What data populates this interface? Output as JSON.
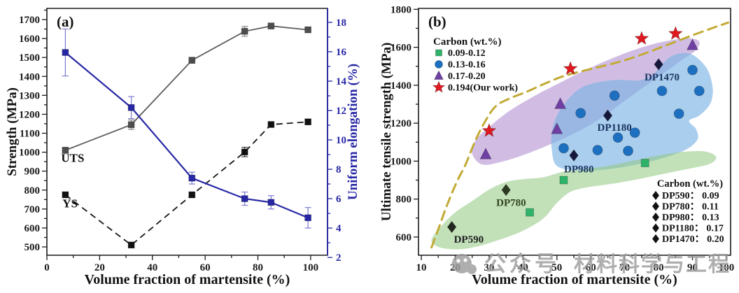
{
  "figure": {
    "description": "Dual-panel figure: mechanical properties of dual-phase steels vs volume fraction of martensite"
  },
  "watermark": {
    "icon": "wechat-icon",
    "texts": [
      "公众号",
      "材料科学与工程"
    ],
    "color": "#9d9d9d"
  },
  "chart_data": [
    {
      "id": "a",
      "type": "line",
      "panel_label": "(a)",
      "xlabel": "Volume fraction of martensite (%)",
      "ylabel": "Strength (MPa)",
      "ylabel_right": "Uniform elongation (%)",
      "axis_color_right": "#2727a6",
      "xlim": [
        0,
        106.4
      ],
      "x_ticks": [
        0,
        20,
        40,
        60,
        80,
        100
      ],
      "x_minor": [
        10,
        30,
        50,
        70,
        90
      ],
      "ylim": [
        456,
        1759
      ],
      "y_ticks": [
        500,
        600,
        700,
        800,
        900,
        1000,
        1100,
        1200,
        1300,
        1400,
        1500,
        1600,
        1700
      ],
      "y_minor": [
        550,
        650,
        750,
        850,
        950,
        1050,
        1150,
        1250,
        1350,
        1450,
        1550,
        1650,
        1750
      ],
      "ylim_right": [
        2.15,
        18.95
      ],
      "y_ticks_right": [
        2,
        4,
        6,
        8,
        10,
        12,
        14,
        16,
        18
      ],
      "y_minor_right": [
        3,
        5,
        7,
        9,
        11,
        13,
        15,
        17
      ],
      "grid": false,
      "series": [
        {
          "name": "UTS",
          "axis": "left",
          "marker": "square",
          "color": "#4d4d4d",
          "line_color": "#5e5e5e",
          "line_style": "solid",
          "err_color": "#8a8a8a",
          "points": [
            [
              7,
              1010
            ],
            [
              32,
              1145
            ],
            [
              55,
              1485
            ],
            [
              75,
              1638
            ],
            [
              85,
              1666
            ],
            [
              99,
              1646
            ]
          ],
          "errors": [
            15,
            25,
            15,
            26,
            14,
            10
          ]
        },
        {
          "name": "YS",
          "axis": "left",
          "marker": "square",
          "color": "#111111",
          "line_color": "#161616",
          "line_style": "dashed",
          "err_color": "#3d3d3d",
          "points": [
            [
              7,
              775
            ],
            [
              32,
              510
            ],
            [
              55,
              775
            ],
            [
              75,
              1001
            ],
            [
              85,
              1146
            ],
            [
              99,
              1160
            ]
          ],
          "errors": [
            10,
            8,
            12,
            25,
            10,
            10
          ]
        },
        {
          "name": "Uniform elongation",
          "axis": "right",
          "marker": "square",
          "color": "#2727a6",
          "line_color": "#2727a6",
          "line_style": "solid",
          "err_color": "#7a7ad0",
          "points": [
            [
              7,
              15.95
            ],
            [
              32,
              12.2
            ],
            [
              55,
              7.4
            ],
            [
              75,
              6.0
            ],
            [
              85,
              5.75
            ],
            [
              99,
              4.7
            ]
          ],
          "errors": [
            1.6,
            0.75,
            0.4,
            0.45,
            0.45,
            0.7
          ]
        }
      ],
      "annotations": [
        {
          "text": "UTS",
          "x": 9.8,
          "y": 948,
          "color": "#111111"
        },
        {
          "text": "YS",
          "x": 8.8,
          "y": 708,
          "color": "#111111"
        }
      ]
    },
    {
      "id": "b",
      "type": "scatter",
      "panel_label": "(b)",
      "xlabel": "Volume fraction of martensite (%)",
      "ylabel": "Ultimate tensile strength (MPa)",
      "xlim": [
        9.17,
        101.24
      ],
      "x_ticks": [
        10,
        20,
        30,
        40,
        50,
        60,
        70,
        80,
        90,
        100
      ],
      "x_minor": [
        15,
        25,
        35,
        45,
        55,
        65,
        75,
        85,
        95
      ],
      "ylim": [
        504,
        1805
      ],
      "y_ticks": [
        600,
        800,
        1000,
        1200,
        1400,
        1600,
        1800
      ],
      "y_minor": [
        700,
        900,
        1100,
        1300,
        1500,
        1700
      ],
      "grid": false,
      "legend_title": "Carbon (wt.%)",
      "series": [
        {
          "name": "0.09-0.12",
          "marker": "square",
          "color": "#2fb36a",
          "points": [
            [
              42,
              730
            ],
            [
              52,
              900
            ],
            [
              76,
              990
            ]
          ]
        },
        {
          "name": "0.13-0.16",
          "marker": "circle",
          "color": "#1d6fc0",
          "points": [
            [
              52,
              1068
            ],
            [
              62,
              1058
            ],
            [
              71,
              1054
            ],
            [
              68,
              1124
            ],
            [
              73,
              1150
            ],
            [
              57,
              1253
            ],
            [
              67,
              1345
            ],
            [
              81,
              1370
            ],
            [
              86,
              1250
            ],
            [
              90,
              1480
            ],
            [
              92,
              1370
            ]
          ]
        },
        {
          "name": "0.17-0.20",
          "marker": "triangle",
          "color": "#6f3fa3",
          "points": [
            [
              29,
              1035
            ],
            [
              50,
              1168
            ],
            [
              51,
              1300
            ],
            [
              90,
              1610
            ]
          ]
        },
        {
          "name": "0.194(Our work)",
          "marker": "star",
          "color": "#e0181f",
          "points": [
            [
              30,
              1160
            ],
            [
              54,
              1487
            ],
            [
              75,
              1646
            ],
            [
              85,
              1672
            ]
          ]
        }
      ],
      "dp_legend_title": "Carbon (wt.%)",
      "dp_points": [
        {
          "label": "DP590",
          "carbon": "0.09",
          "point": [
            19,
            653
          ],
          "label_pos": [
            24,
            588
          ],
          "color": "#22281e",
          "label_color": "#1d1d1d"
        },
        {
          "label": "DP780",
          "carbon": "0.11",
          "point": [
            35,
            848
          ],
          "label_pos": [
            36.5,
            782
          ],
          "color": "#2c3b20",
          "label_color": "#324420"
        },
        {
          "label": "DP980",
          "carbon": "0.13",
          "point": [
            55,
            1030
          ],
          "label_pos": [
            56.5,
            960
          ],
          "color": "#15173b",
          "label_color": "#1b3560"
        },
        {
          "label": "DP1180",
          "carbon": "0.17",
          "point": [
            65,
            1240
          ],
          "label_pos": [
            67,
            1178
          ],
          "color": "#15173b",
          "label_color": "#1b3560"
        },
        {
          "label": "DP1470",
          "carbon": "0.20",
          "point": [
            80,
            1510
          ],
          "label_pos": [
            81,
            1443
          ],
          "color": "#15173b",
          "label_color": "#1b3560"
        }
      ],
      "boundary": {
        "name": "upper-bound-dashed-curve",
        "color": "#c2aa35",
        "dash": "13,8",
        "points": [
          [
            13,
            545
          ],
          [
            15,
            640
          ],
          [
            17,
            740
          ],
          [
            19,
            830
          ],
          [
            21,
            910
          ],
          [
            23,
            980
          ],
          [
            26,
            1110
          ],
          [
            29,
            1215
          ],
          [
            32,
            1290
          ],
          [
            36,
            1330
          ],
          [
            41,
            1365
          ],
          [
            46,
            1405
          ],
          [
            51,
            1442
          ],
          [
            56,
            1468
          ],
          [
            61,
            1490
          ],
          [
            66,
            1512
          ],
          [
            71,
            1537
          ],
          [
            76,
            1568
          ],
          [
            81,
            1602
          ],
          [
            86,
            1636
          ],
          [
            91,
            1670
          ],
          [
            96,
            1702
          ],
          [
            100.5,
            1730
          ]
        ]
      },
      "regions": [
        {
          "name": "purple-region",
          "fill": "#b494d4",
          "opacity": 0.62,
          "points": [
            [
              25,
              1040
            ],
            [
              26,
              1110
            ],
            [
              30,
              1180
            ],
            [
              36,
              1265
            ],
            [
              43,
              1340
            ],
            [
              50,
              1405
            ],
            [
              57,
              1468
            ],
            [
              64,
              1525
            ],
            [
              71,
              1575
            ],
            [
              78,
              1615
            ],
            [
              84,
              1638
            ],
            [
              89,
              1648
            ],
            [
              92,
              1630
            ],
            [
              91,
              1585
            ],
            [
              87,
              1535
            ],
            [
              82,
              1470
            ],
            [
              76,
              1395
            ],
            [
              69,
              1305
            ],
            [
              62,
              1215
            ],
            [
              55,
              1145
            ],
            [
              48,
              1088
            ],
            [
              41,
              1038
            ],
            [
              34,
              998
            ],
            [
              28,
              982
            ]
          ]
        },
        {
          "name": "blue-region",
          "fill": "#7db3e3",
          "opacity": 0.65,
          "points": [
            [
              50,
              975
            ],
            [
              48.5,
              1060
            ],
            [
              48.5,
              1150
            ],
            [
              50,
              1240
            ],
            [
              53,
              1320
            ],
            [
              57,
              1385
            ],
            [
              62,
              1415
            ],
            [
              68,
              1428
            ],
            [
              74,
              1425
            ],
            [
              78,
              1450
            ],
            [
              81,
              1510
            ],
            [
              84,
              1555
            ],
            [
              88,
              1570
            ],
            [
              91,
              1550
            ],
            [
              94,
              1495
            ],
            [
              95.5,
              1430
            ],
            [
              96,
              1360
            ],
            [
              95,
              1295
            ],
            [
              92,
              1240
            ],
            [
              89,
              1212
            ],
            [
              91,
              1170
            ],
            [
              91.5,
              1115
            ],
            [
              88,
              1060
            ],
            [
              81,
              1015
            ],
            [
              73,
              980
            ],
            [
              64,
              955
            ],
            [
              56,
              950
            ]
          ]
        },
        {
          "name": "green-region",
          "fill": "#90c97f",
          "opacity": 0.55,
          "points": [
            [
              13,
              585
            ],
            [
              16,
              660
            ],
            [
              20,
              730
            ],
            [
              25,
              790
            ],
            [
              30,
              850
            ],
            [
              35,
              890
            ],
            [
              40,
              905
            ],
            [
              46,
              915
            ],
            [
              52,
              945
            ],
            [
              58,
              958
            ],
            [
              65,
              975
            ],
            [
              72,
              1000
            ],
            [
              80,
              1030
            ],
            [
              88,
              1050
            ],
            [
              94,
              1050
            ],
            [
              97,
              1020
            ],
            [
              95,
              985
            ],
            [
              89,
              960
            ],
            [
              82,
              935
            ],
            [
              74,
              905
            ],
            [
              66,
              880
            ],
            [
              59,
              862
            ],
            [
              54,
              838
            ],
            [
              50,
              780
            ],
            [
              47,
              715
            ],
            [
              44,
              672
            ],
            [
              39,
              625
            ],
            [
              33,
              585
            ],
            [
              26,
              548
            ],
            [
              20,
              535
            ],
            [
              15,
              548
            ]
          ]
        }
      ]
    }
  ]
}
